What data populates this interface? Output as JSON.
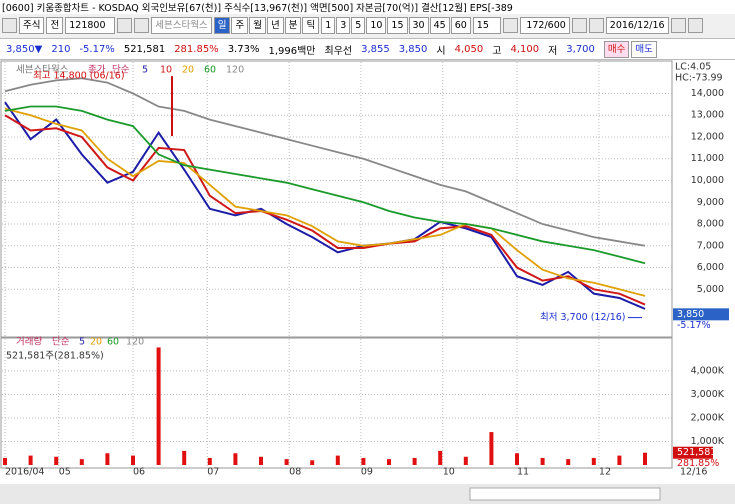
{
  "window": {
    "title": "[0600] 키움종합차트 - KOSDAQ 외국인보유[67(천)] 주식수[13,967(천)] 액면[500] 자본금[70(억)] 결산[12월] EPS[-389"
  },
  "toolbar": {
    "market": "주식",
    "prev": "전",
    "code": "121800",
    "name": "세븐스타웍스",
    "periods": [
      "일",
      "주",
      "월",
      "년",
      "분",
      "틱"
    ],
    "minutes": [
      "1",
      "3",
      "5",
      "10",
      "15",
      "30",
      "45",
      "60"
    ],
    "interval": "15",
    "count": "172/600",
    "date": "2016/12/16"
  },
  "quote": {
    "price": "3,850",
    "arrow": "▼",
    "change": "210",
    "change_pct": "-5.17%",
    "volume": "521,581",
    "volume_ratio": "281.85%",
    "turnover": "3.73%",
    "amount": "1,996백만",
    "best_label": "최우선",
    "ask": "3,855",
    "bid": "3,850",
    "open_label": "시",
    "open": "4,050",
    "high_label": "고",
    "high": "4,100",
    "low_label": "저",
    "low": "3,700",
    "buy": "매수",
    "sell": "매도"
  },
  "chart_data": [
    {
      "type": "line",
      "legend_title": "세븐스타웍스",
      "price_label": "종가",
      "ma_label": "단순",
      "lc": "LC:4.05",
      "hc": "HC:-73.99",
      "xticks": [
        {
          "value": 0,
          "label": "2016/04"
        },
        {
          "value": 2.1,
          "label": "05"
        },
        {
          "value": 5.0,
          "label": "06"
        },
        {
          "value": 7.9,
          "label": "07"
        },
        {
          "value": 11.1,
          "label": "08"
        },
        {
          "value": 13.9,
          "label": "09"
        },
        {
          "value": 17.1,
          "label": "10"
        },
        {
          "value": 20.0,
          "label": "11"
        },
        {
          "value": 23.2,
          "label": "12"
        }
      ],
      "last_date": "12/16",
      "ylim": [
        2900,
        15400
      ],
      "yticks": [
        {
          "value": 5000,
          "label": "5,000"
        },
        {
          "value": 6000,
          "label": "6,000"
        },
        {
          "value": 7000,
          "label": "7,000"
        },
        {
          "value": 8000,
          "label": "8,000"
        },
        {
          "value": 9000,
          "label": "9,000"
        },
        {
          "value": 10000,
          "label": "10,000"
        },
        {
          "value": 11000,
          "label": "11,000"
        },
        {
          "value": 12000,
          "label": "12,000"
        },
        {
          "value": 13000,
          "label": "13,000"
        },
        {
          "value": 14000,
          "label": "14,000"
        }
      ],
      "grid": true,
      "series": [
        {
          "name": "5",
          "color": "#1c1ca8",
          "values": [
            13600,
            11900,
            12800,
            11200,
            9900,
            10400,
            12200,
            10500,
            8700,
            8400,
            8700,
            8000,
            7400,
            6700,
            7000,
            7100,
            7300,
            8100,
            7800,
            7400,
            5600,
            5200,
            5800,
            4800,
            4600,
            4100
          ]
        },
        {
          "name": "10",
          "color": "#d01818",
          "values": [
            13000,
            12300,
            12400,
            12000,
            10600,
            10000,
            11500,
            11400,
            9300,
            8500,
            8600,
            8200,
            7700,
            6900,
            6900,
            7100,
            7200,
            7800,
            7900,
            7500,
            6000,
            5400,
            5600,
            5000,
            4800,
            4300
          ]
        },
        {
          "name": "20",
          "color": "#e0a000",
          "values": [
            13300,
            13000,
            12600,
            12300,
            11000,
            10200,
            10900,
            10800,
            9800,
            8800,
            8600,
            8400,
            7900,
            7200,
            7000,
            7100,
            7300,
            7500,
            8000,
            7800,
            6800,
            5900,
            5500,
            5300,
            5000,
            4700
          ]
        },
        {
          "name": "60",
          "color": "#1a9a2a",
          "values": [
            13200,
            13400,
            13400,
            13200,
            12800,
            12500,
            11200,
            10700,
            10500,
            10300,
            10100,
            9900,
            9600,
            9300,
            9000,
            8600,
            8300,
            8100,
            8000,
            7800,
            7500,
            7200,
            7000,
            6800,
            6500,
            6200
          ]
        },
        {
          "name": "120",
          "color": "#888888",
          "values": [
            14100,
            14400,
            14600,
            14700,
            14500,
            14000,
            13400,
            13200,
            12800,
            12500,
            12200,
            11900,
            11600,
            11300,
            11000,
            10600,
            10200,
            9800,
            9500,
            9000,
            8500,
            8000,
            7700,
            7400,
            7200,
            7000
          ]
        }
      ],
      "high": {
        "value": 14800,
        "label": "최고 14,800 (06/16)"
      },
      "low": {
        "value": 3700,
        "label": "최저 3,700 (12/16)"
      },
      "last": {
        "value": 3850,
        "label": "3,850",
        "change": "-5.17%"
      }
    },
    {
      "type": "bar",
      "title": "거래량",
      "ma_label": "단순",
      "ma_names": [
        "5",
        "20",
        "60",
        "120"
      ],
      "summary": "521,581주(281.85%)",
      "ylim": [
        0,
        5400000
      ],
      "yticks": [
        {
          "value": 1000000,
          "label": "1,000K"
        },
        {
          "value": 2000000,
          "label": "2,000K"
        },
        {
          "value": 3000000,
          "label": "3,000K"
        },
        {
          "value": 4000000,
          "label": "4,000K"
        }
      ],
      "color": "#e01010",
      "values": [
        300000,
        400000,
        350000,
        250000,
        500000,
        400000,
        5000000,
        600000,
        300000,
        500000,
        350000,
        250000,
        200000,
        400000,
        300000,
        250000,
        300000,
        600000,
        350000,
        1400000,
        500000,
        300000,
        250000,
        300000,
        400000,
        521581
      ],
      "last_label": "521,581",
      "last_ratio": "281.85%"
    }
  ]
}
